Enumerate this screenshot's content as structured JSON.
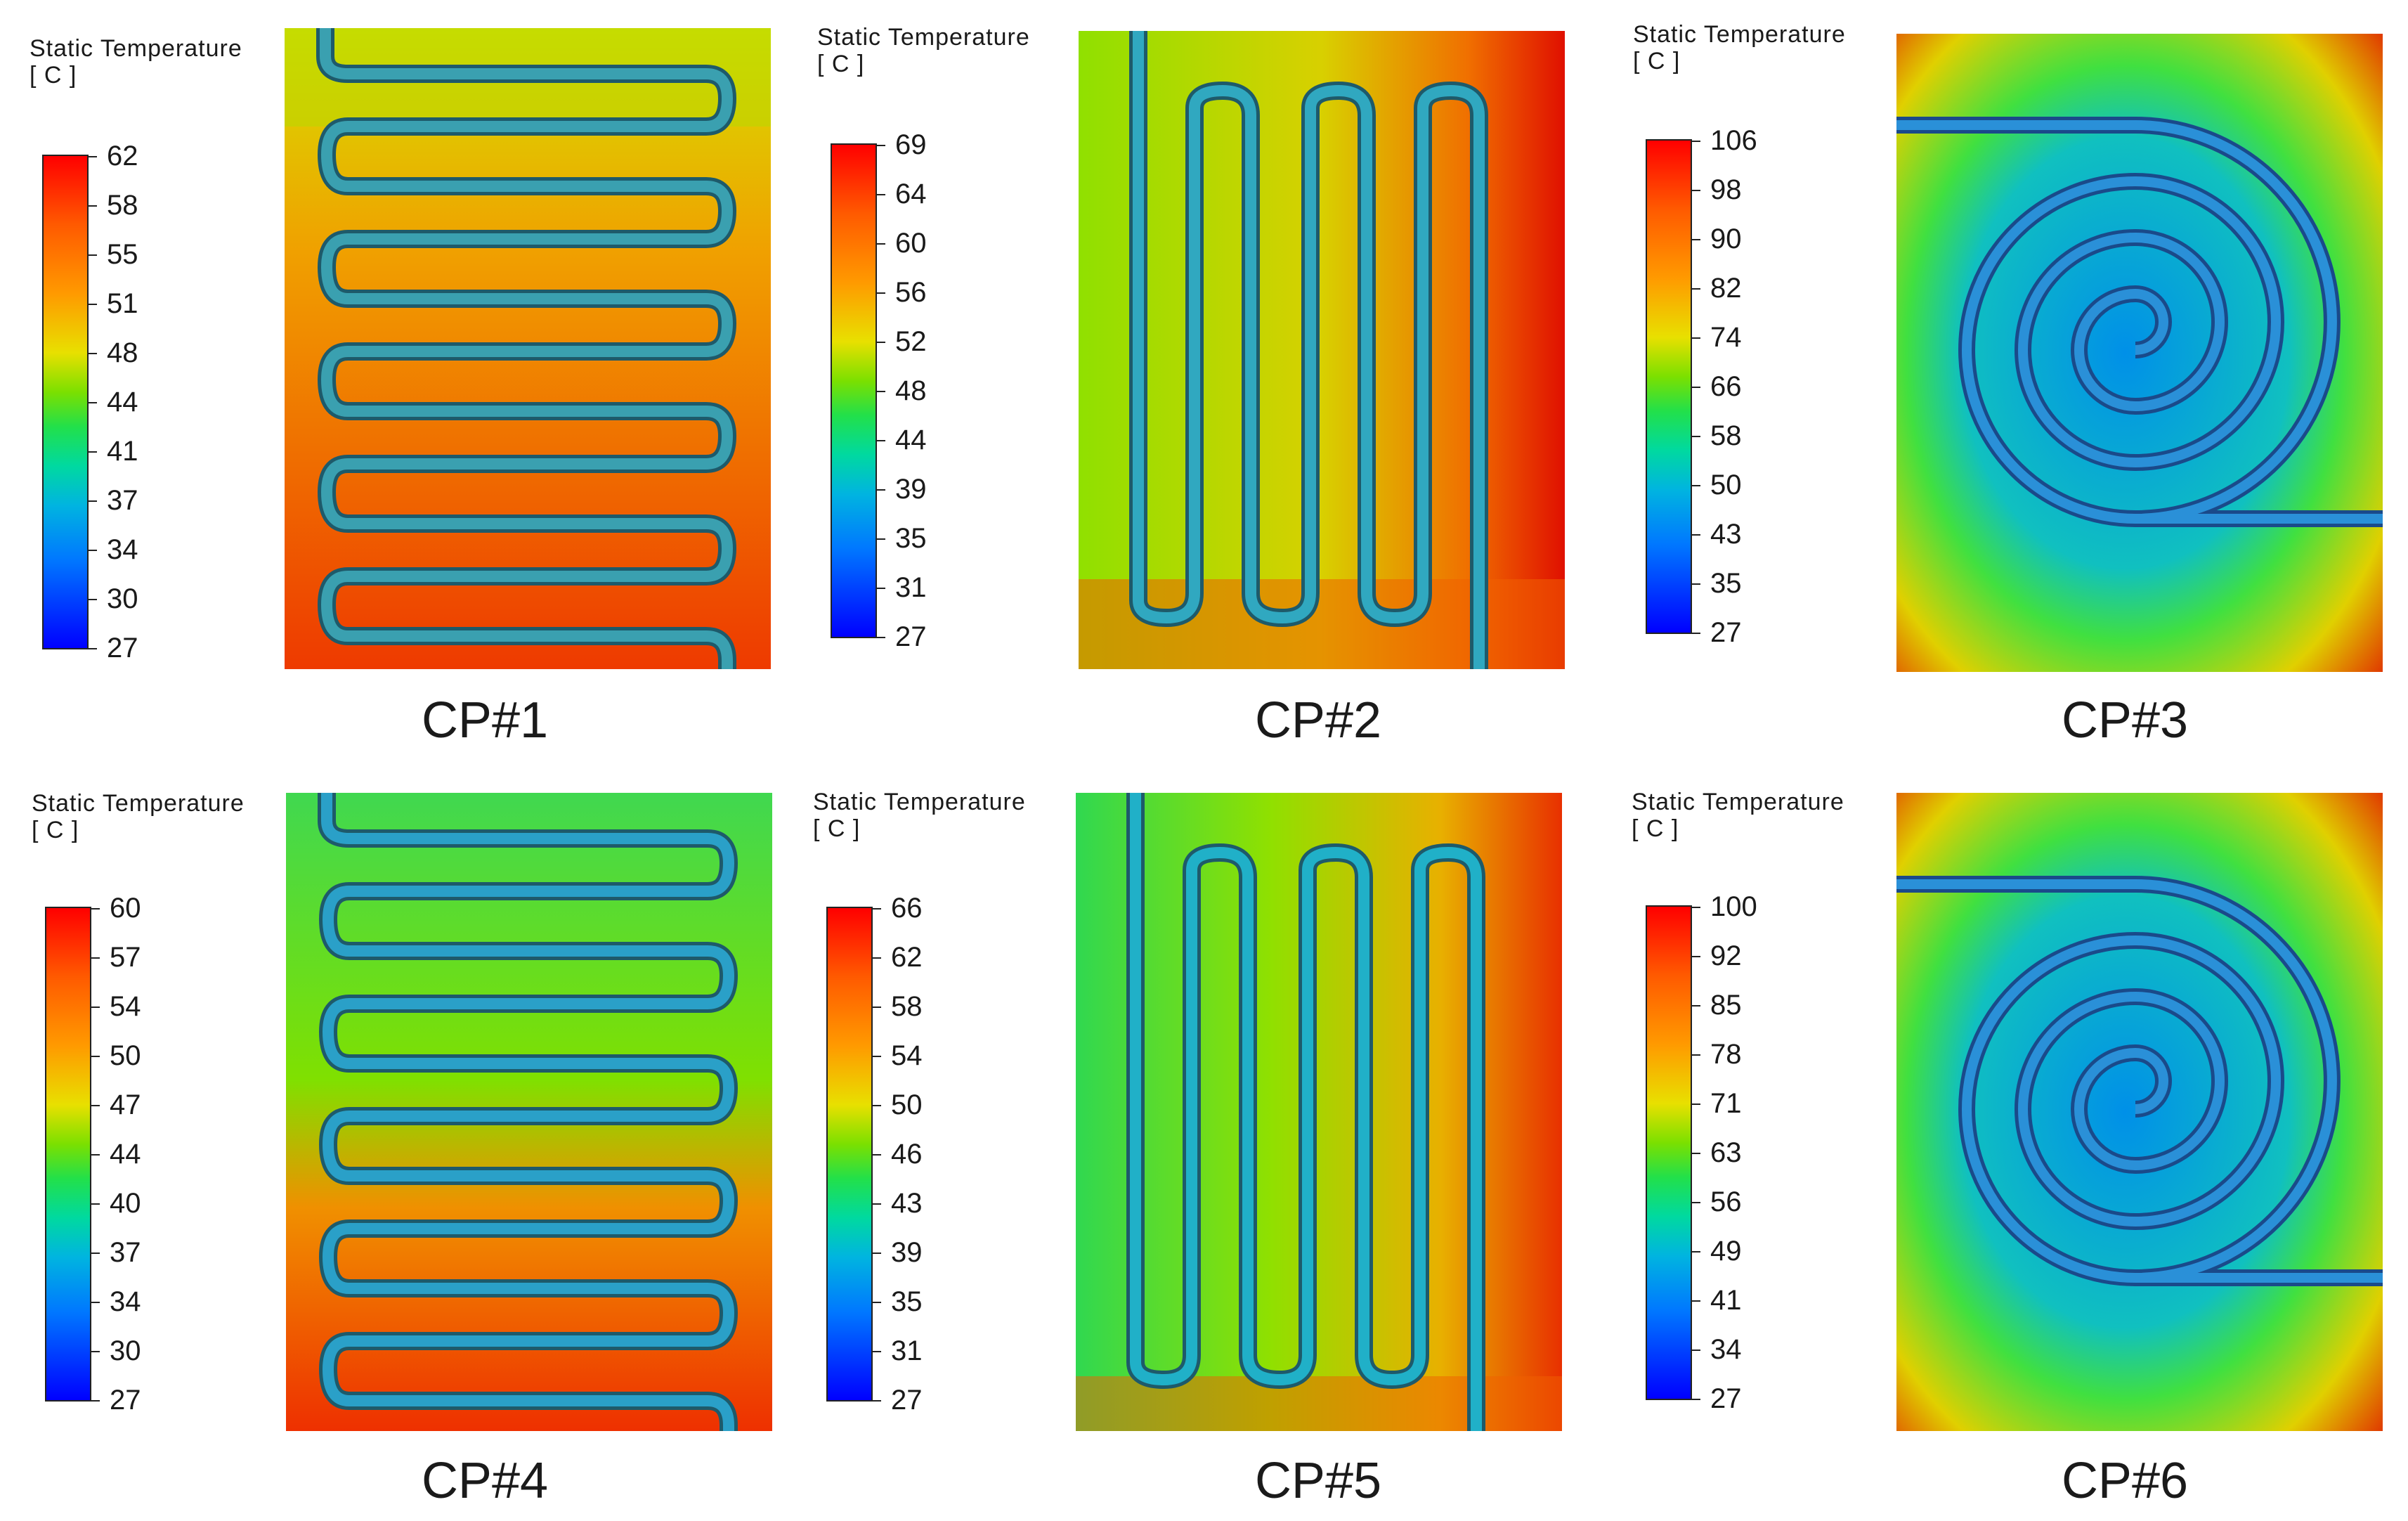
{
  "legend_title": "Static Temperature",
  "legend_unit": "[ C ]",
  "panels": [
    {
      "caption": "CP#1",
      "ticks": [
        "62",
        "58",
        "55",
        "51",
        "48",
        "44",
        "41",
        "37",
        "34",
        "30",
        "27"
      ]
    },
    {
      "caption": "CP#2",
      "ticks": [
        "69",
        "64",
        "60",
        "56",
        "52",
        "48",
        "44",
        "39",
        "35",
        "31",
        "27"
      ]
    },
    {
      "caption": "CP#3",
      "ticks": [
        "106",
        "98",
        "90",
        "82",
        "74",
        "66",
        "58",
        "50",
        "43",
        "35",
        "27"
      ]
    },
    {
      "caption": "CP#4",
      "ticks": [
        "60",
        "57",
        "54",
        "50",
        "47",
        "44",
        "40",
        "37",
        "34",
        "30",
        "27"
      ]
    },
    {
      "caption": "CP#5",
      "ticks": [
        "66",
        "62",
        "58",
        "54",
        "50",
        "46",
        "43",
        "39",
        "35",
        "31",
        "27"
      ]
    },
    {
      "caption": "CP#6",
      "ticks": [
        "100",
        "92",
        "85",
        "78",
        "71",
        "63",
        "56",
        "49",
        "41",
        "34",
        "27"
      ]
    }
  ]
}
